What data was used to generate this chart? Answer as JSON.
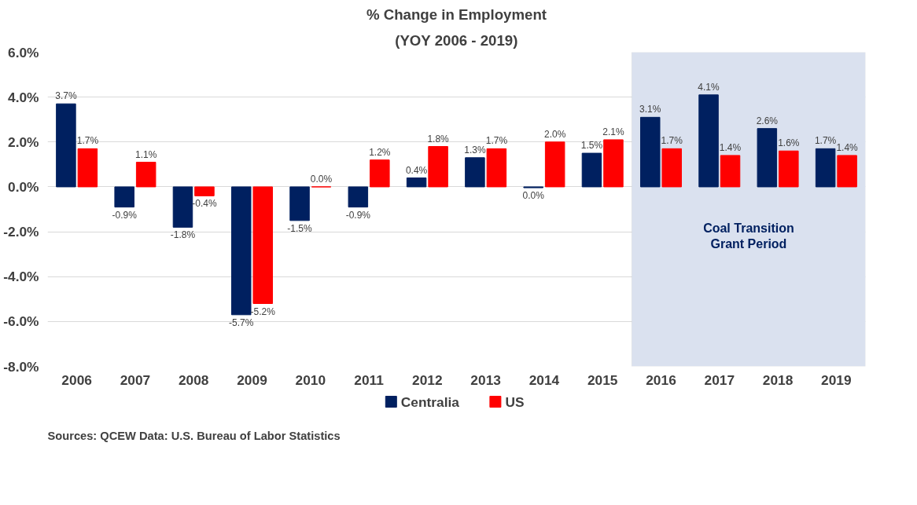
{
  "chart_data": {
    "type": "bar",
    "title": "% Change in Employment",
    "subtitle": "(YOY 2006 - 2019)",
    "categories": [
      "2006",
      "2007",
      "2008",
      "2009",
      "2010",
      "2011",
      "2012",
      "2013",
      "2014",
      "2015",
      "2016",
      "2017",
      "2018",
      "2019"
    ],
    "series": [
      {
        "name": "Centralia",
        "color": "#002060",
        "values": [
          3.7,
          -0.9,
          -1.8,
          -5.7,
          -1.5,
          -0.9,
          0.4,
          1.3,
          -0.04,
          1.5,
          3.1,
          4.1,
          2.6,
          1.7
        ],
        "value_labels": [
          "3.7%",
          "-0.9%",
          "-1.8%",
          "-5.7%",
          "-1.5%",
          "-0.9%",
          "0.4%",
          "1.3%",
          "0.0%",
          "1.5%",
          "3.1%",
          "4.1%",
          "2.6%",
          "1.7%"
        ]
      },
      {
        "name": "US",
        "color": "#ff0000",
        "values": [
          1.7,
          1.1,
          -0.4,
          -5.2,
          0.0,
          1.2,
          1.8,
          1.7,
          2.0,
          2.1,
          1.7,
          1.4,
          1.6,
          1.4
        ],
        "value_labels": [
          "1.7%",
          "1.1%",
          "-0.4%",
          "-5.2%",
          "0.0%",
          "1.2%",
          "1.8%",
          "1.7%",
          "2.0%",
          "2.1%",
          "1.7%",
          "1.4%",
          "1.6%",
          "1.4%"
        ]
      }
    ],
    "ylim": [
      -8,
      6
    ],
    "yticks": [
      {
        "value": -8,
        "label": "-8.0%"
      },
      {
        "value": -6,
        "label": "-6.0%"
      },
      {
        "value": -4,
        "label": "-4.0%"
      },
      {
        "value": -2,
        "label": "-2.0%"
      },
      {
        "value": 0,
        "label": "0.0%"
      },
      {
        "value": 2,
        "label": "2.0%"
      },
      {
        "value": 4,
        "label": "4.0%"
      },
      {
        "value": 6,
        "label": "6.0%"
      }
    ],
    "grid": "y",
    "legend": "bottom",
    "bands": [
      {
        "axis": "x",
        "from": "2016",
        "to": "2019",
        "label": "Coal Transition\nGrant Period",
        "color": "#dae1ef"
      }
    ],
    "annotations": [
      "Sources: QCEW Data: U.S. Bureau of Labor Statistics"
    ]
  }
}
